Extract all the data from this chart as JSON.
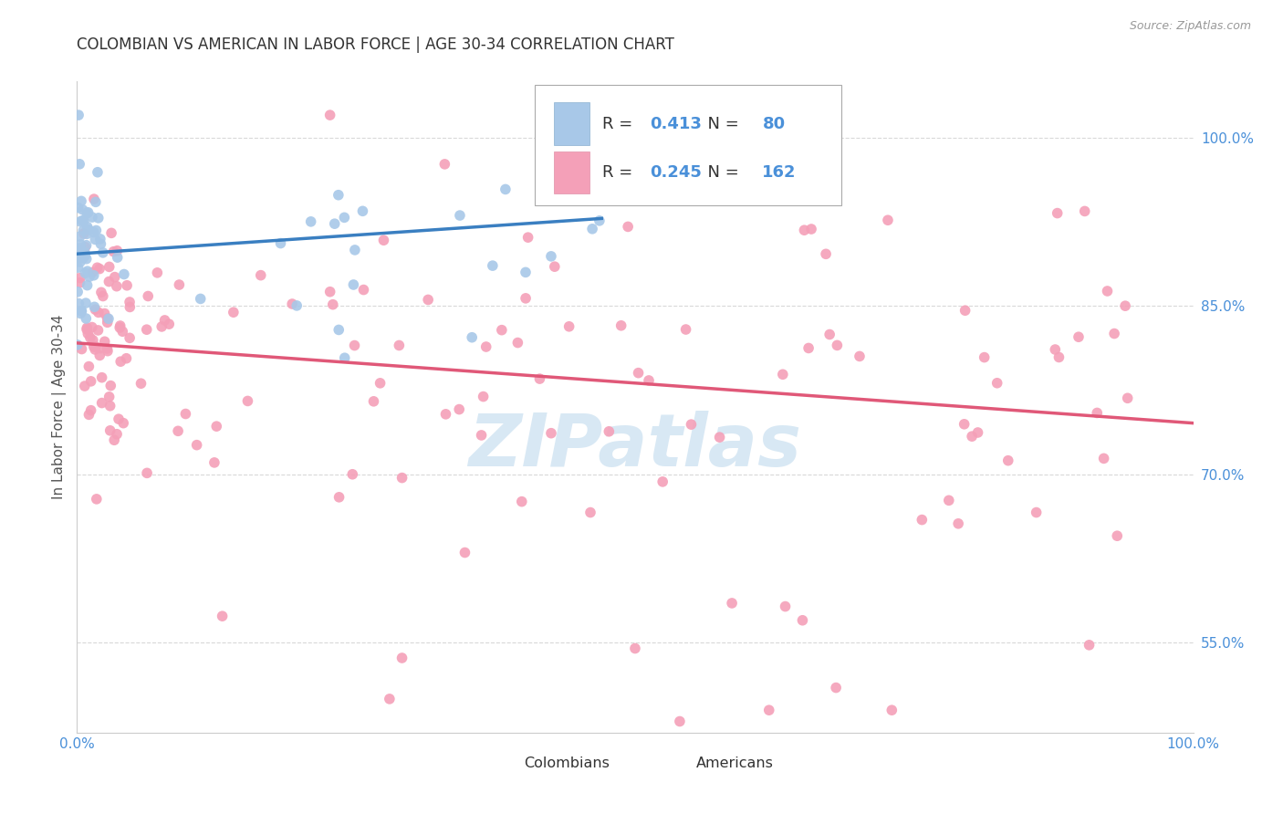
{
  "title": "COLOMBIAN VS AMERICAN IN LABOR FORCE | AGE 30-34 CORRELATION CHART",
  "source": "Source: ZipAtlas.com",
  "ylabel": "In Labor Force | Age 30-34",
  "xlim": [
    0.0,
    1.0
  ],
  "ylim": [
    0.47,
    1.05
  ],
  "yticks": [
    0.55,
    0.7,
    0.85,
    1.0
  ],
  "ytick_labels": [
    "55.0%",
    "70.0%",
    "85.0%",
    "100.0%"
  ],
  "xtick_labels": [
    "0.0%",
    "100.0%"
  ],
  "blue_R": "0.413",
  "blue_N": "80",
  "pink_R": "0.245",
  "pink_N": "162",
  "blue_color": "#a8c8e8",
  "pink_color": "#f4a0b8",
  "blue_line_color": "#3a7fc1",
  "pink_line_color": "#e05878",
  "title_color": "#333333",
  "axis_label_color": "#555555",
  "tick_label_color": "#4a90d9",
  "legend_stat_color": "#4a90d9",
  "watermark_text": "ZIPatlas",
  "watermark_color": "#c8dff0",
  "background_color": "#ffffff",
  "grid_color": "#d0d0d0",
  "blue_line_end_x": 0.47,
  "pink_line_start_y": 0.765,
  "pink_line_end_y": 0.875
}
